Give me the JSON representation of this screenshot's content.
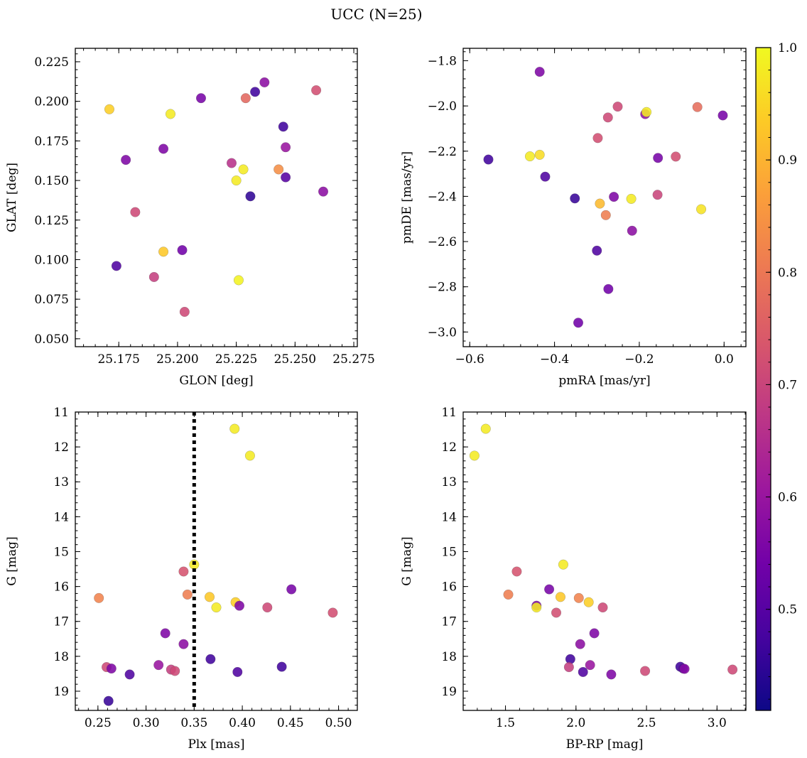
{
  "figure": {
    "title": "UCC (N=25)"
  },
  "colors": {
    "colormap": [
      "#0d0887",
      "#46039f",
      "#7201a8",
      "#9c179e",
      "#bd3786",
      "#d8576b",
      "#ed7953",
      "#fb9f3a",
      "#fdca26",
      "#f0f921"
    ],
    "threshold_line": "#000000"
  },
  "colorbar": {
    "min": 0.41,
    "max": 1.0,
    "ticks": [
      0.5,
      0.6,
      0.7,
      0.8,
      0.9,
      1.0
    ],
    "tick_labels": [
      "0.5",
      "0.6",
      "0.7",
      "0.8",
      "0.9",
      "1.0"
    ]
  },
  "chart_data": [
    {
      "type": "scatter",
      "title": "",
      "xlabel": "GLON [deg]",
      "ylabel": "GLAT [deg]",
      "xlim": [
        25.1565,
        25.2765
      ],
      "ylim": [
        0.045,
        0.2335
      ],
      "invert_y": false,
      "xticks": [
        25.175,
        25.2,
        25.225,
        25.25,
        25.275
      ],
      "xtick_labels": [
        "25.175",
        "25.200",
        "25.225",
        "25.250",
        "25.275"
      ],
      "yticks": [
        0.05,
        0.075,
        0.1,
        0.125,
        0.15,
        0.175,
        0.2,
        0.225
      ],
      "ytick_labels": [
        "0.050",
        "0.075",
        "0.100",
        "0.125",
        "0.150",
        "0.175",
        "0.200",
        "0.225"
      ],
      "x": [
        25.171,
        25.197,
        25.21,
        25.229,
        25.233,
        25.237,
        25.259,
        25.178,
        25.194,
        25.245,
        25.246,
        25.223,
        25.228,
        25.225,
        25.243,
        25.246,
        25.231,
        25.262,
        25.182,
        25.194,
        25.202,
        25.174,
        25.19,
        25.226,
        25.203
      ],
      "y": [
        0.195,
        0.192,
        0.202,
        0.202,
        0.206,
        0.212,
        0.207,
        0.163,
        0.17,
        0.184,
        0.171,
        0.161,
        0.157,
        0.15,
        0.157,
        0.152,
        0.14,
        0.143,
        0.13,
        0.105,
        0.106,
        0.096,
        0.089,
        0.087,
        0.067
      ],
      "c": [
        0.94,
        0.98,
        0.55,
        0.77,
        0.47,
        0.58,
        0.72,
        0.56,
        0.56,
        0.47,
        0.6,
        0.66,
        0.98,
        0.98,
        0.84,
        0.5,
        0.45,
        0.58,
        0.71,
        0.93,
        0.54,
        0.49,
        0.69,
        0.99,
        0.71
      ]
    },
    {
      "type": "scatter",
      "title": "",
      "xlabel": "pmRA [mas/yr]",
      "ylabel": "pmDE [mas/yr]",
      "xlim": [
        -0.6155,
        0.0515
      ],
      "ylim": [
        -3.065,
        -1.745
      ],
      "invert_y": false,
      "xticks": [
        -0.6,
        -0.4,
        -0.2,
        0.0
      ],
      "xtick_labels": [
        "−0.6",
        "−0.4",
        "−0.2",
        "0.0"
      ],
      "yticks": [
        -3.0,
        -2.8,
        -2.6,
        -2.4,
        -2.2,
        -2.0,
        -1.8
      ],
      "ytick_labels": [
        "−3.0",
        "−2.8",
        "−2.6",
        "−2.4",
        "−2.2",
        "−2.0",
        "−1.8"
      ],
      "x": [
        -0.435,
        -0.251,
        -0.274,
        -0.298,
        -0.186,
        -0.183,
        -0.063,
        -0.003,
        -0.556,
        -0.458,
        -0.435,
        -0.422,
        -0.156,
        -0.114,
        -0.352,
        -0.26,
        -0.219,
        -0.157,
        -0.293,
        -0.279,
        -0.054,
        -0.217,
        -0.3,
        -0.273,
        -0.344
      ],
      "y": [
        -1.849,
        -2.003,
        -2.051,
        -2.142,
        -2.036,
        -2.027,
        -2.005,
        -2.042,
        -2.237,
        -2.223,
        -2.216,
        -2.313,
        -2.23,
        -2.224,
        -2.409,
        -2.402,
        -2.411,
        -2.393,
        -2.432,
        -2.483,
        -2.457,
        -2.552,
        -2.64,
        -2.81,
        -2.959
      ],
      "c": [
        0.56,
        0.71,
        0.71,
        0.72,
        0.59,
        0.98,
        0.78,
        0.55,
        0.47,
        0.98,
        0.96,
        0.49,
        0.55,
        0.72,
        0.46,
        0.56,
        0.98,
        0.7,
        0.91,
        0.81,
        0.97,
        0.58,
        0.49,
        0.54,
        0.54
      ]
    },
    {
      "type": "scatter",
      "title": "",
      "xlabel": "Plx [mas]",
      "ylabel": "G [mag]",
      "xlim": [
        0.2265,
        0.5195
      ],
      "ylim": [
        11.0,
        19.55
      ],
      "invert_y": true,
      "vline": 0.35,
      "xticks": [
        0.25,
        0.3,
        0.35,
        0.4,
        0.45,
        0.5
      ],
      "xtick_labels": [
        "0.25",
        "0.30",
        "0.35",
        "0.40",
        "0.45",
        "0.50"
      ],
      "yticks": [
        11,
        12,
        13,
        14,
        15,
        16,
        17,
        18,
        19
      ],
      "ytick_labels": [
        "11",
        "12",
        "13",
        "14",
        "15",
        "16",
        "17",
        "18",
        "19"
      ],
      "x": [
        0.392,
        0.408,
        0.35,
        0.339,
        0.251,
        0.343,
        0.366,
        0.373,
        0.393,
        0.397,
        0.451,
        0.426,
        0.494,
        0.32,
        0.339,
        0.367,
        0.313,
        0.326,
        0.33,
        0.259,
        0.264,
        0.283,
        0.395,
        0.441,
        0.261
      ],
      "y": [
        11.48,
        12.25,
        15.37,
        15.57,
        16.33,
        16.23,
        16.3,
        16.6,
        16.45,
        16.55,
        16.08,
        16.6,
        16.75,
        17.34,
        17.65,
        18.08,
        18.25,
        18.38,
        18.42,
        18.31,
        18.35,
        18.52,
        18.45,
        18.3,
        19.28
      ],
      "c": [
        0.98,
        0.98,
        0.98,
        0.73,
        0.82,
        0.81,
        0.93,
        0.98,
        0.94,
        0.56,
        0.55,
        0.71,
        0.72,
        0.56,
        0.58,
        0.47,
        0.6,
        0.69,
        0.71,
        0.71,
        0.56,
        0.49,
        0.49,
        0.47,
        0.46
      ]
    },
    {
      "type": "scatter",
      "title": "",
      "xlabel": "BP-RP [mag]",
      "ylabel": "G [mag]",
      "xlim": [
        1.2,
        3.205
      ],
      "ylim": [
        11.0,
        19.55
      ],
      "invert_y": true,
      "xticks": [
        1.5,
        2.0,
        2.5,
        3.0
      ],
      "xtick_labels": [
        "1.5",
        "2.0",
        "2.5",
        "3.0"
      ],
      "yticks": [
        11,
        12,
        13,
        14,
        15,
        16,
        17,
        18,
        19
      ],
      "ytick_labels": [
        "11",
        "12",
        "13",
        "14",
        "15",
        "16",
        "17",
        "18",
        "19"
      ],
      "x": [
        1.28,
        1.36,
        1.58,
        1.52,
        1.91,
        1.81,
        1.89,
        2.02,
        2.09,
        1.72,
        1.72,
        1.86,
        2.19,
        2.13,
        2.03,
        1.96,
        2.1,
        1.95,
        2.49,
        2.05,
        2.25,
        2.74,
        2.76,
        3.11,
        2.77
      ],
      "y": [
        12.25,
        11.48,
        15.57,
        16.23,
        15.37,
        16.08,
        16.3,
        16.33,
        16.45,
        16.55,
        16.6,
        16.75,
        16.6,
        17.34,
        17.65,
        18.08,
        18.25,
        18.31,
        18.42,
        18.45,
        18.52,
        18.3,
        18.35,
        18.38,
        18.36
      ],
      "c": [
        0.98,
        0.98,
        0.73,
        0.81,
        0.98,
        0.55,
        0.93,
        0.82,
        0.94,
        0.56,
        0.98,
        0.72,
        0.71,
        0.56,
        0.58,
        0.47,
        0.6,
        0.69,
        0.71,
        0.49,
        0.56,
        0.47,
        0.49,
        0.71,
        0.57
      ]
    }
  ]
}
